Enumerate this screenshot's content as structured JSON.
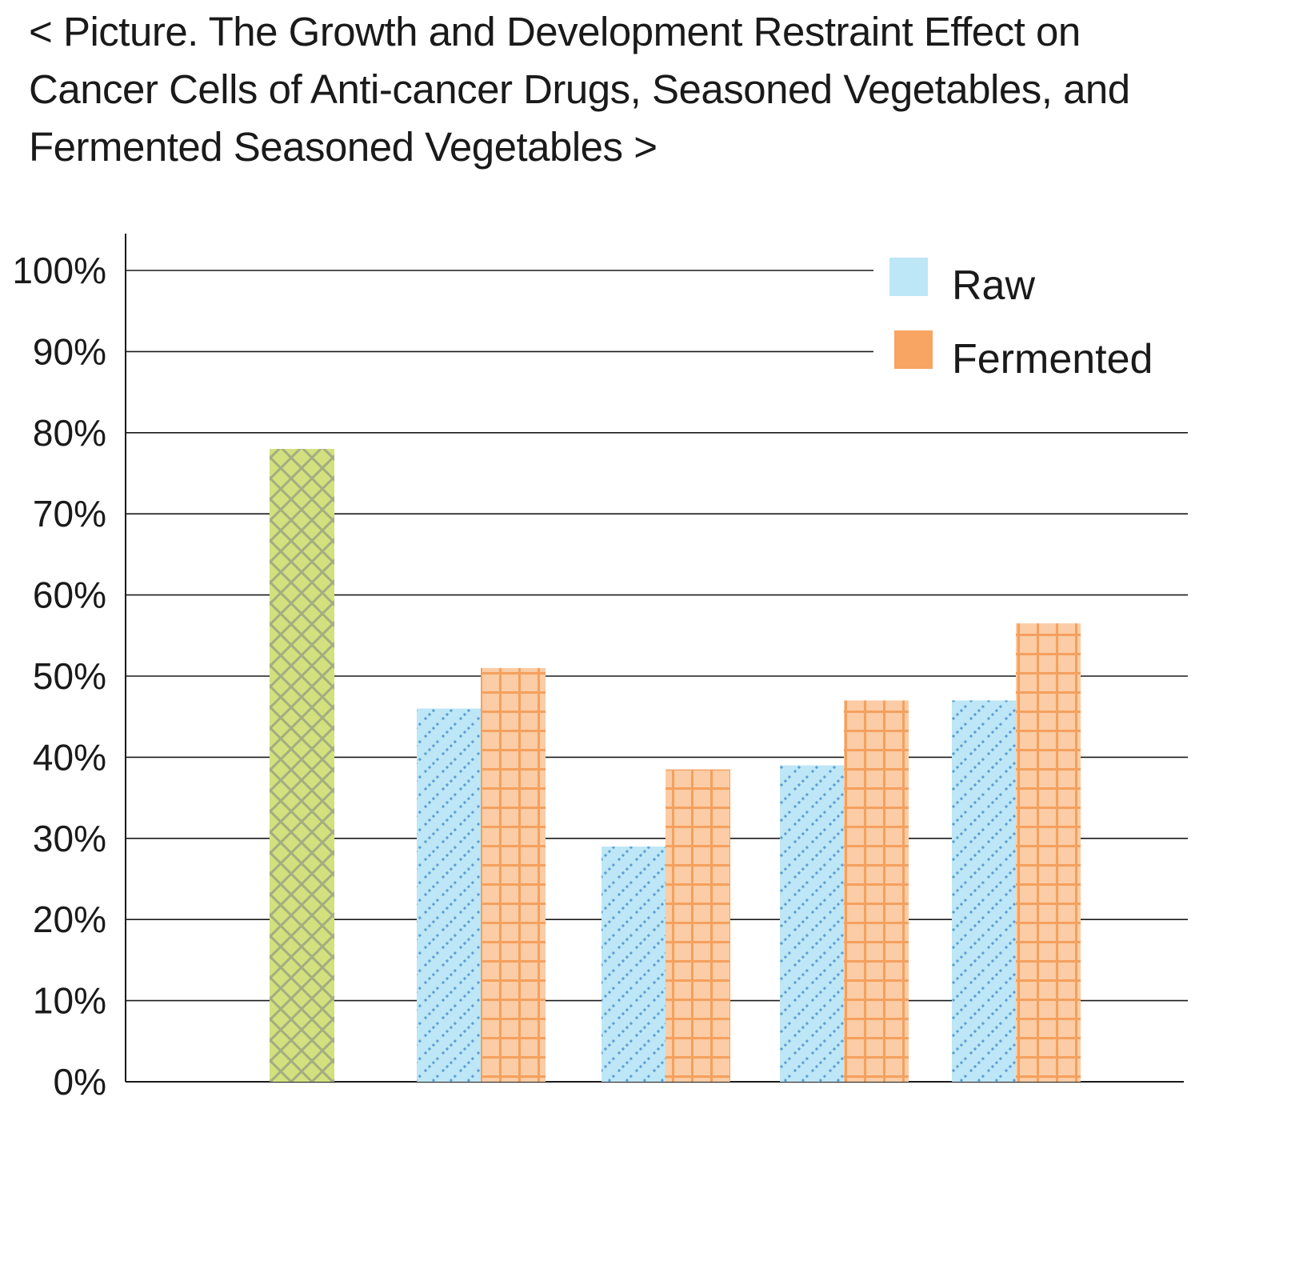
{
  "chart_data": {
    "type": "bar",
    "title_lines": [
      "< Picture. The Growth and Development Restraint Effect on",
      "Cancer Cells of Anti-cancer Drugs, Seasoned Vegetables, and",
      "Fermented Seasoned Vegetables >"
    ],
    "xlabel": "",
    "ylabel": "",
    "ylim": [
      0,
      100
    ],
    "y_ticks": [
      0,
      10,
      20,
      30,
      40,
      50,
      60,
      70,
      80,
      90,
      100
    ],
    "y_tick_labels": [
      "0%",
      "10%",
      "20%",
      "30%",
      "40%",
      "50%",
      "60%",
      "70%",
      "80%",
      "90%",
      "100%"
    ],
    "grid": true,
    "legend_position": "top-right",
    "categories": [
      "",
      "",
      "",
      "",
      ""
    ],
    "single_bar": {
      "category_index": 0,
      "value": 78,
      "color": "#d3e07e",
      "pattern": "crosshatch"
    },
    "series": [
      {
        "name": "Raw",
        "color": "#bde6f6",
        "pattern": "dotted-diagonal",
        "values": [
          null,
          46,
          29,
          39,
          47
        ]
      },
      {
        "name": "Fermented",
        "color": "#f8a463",
        "pattern": "grid",
        "values": [
          null,
          51,
          38.5,
          47,
          56.5
        ]
      }
    ]
  }
}
